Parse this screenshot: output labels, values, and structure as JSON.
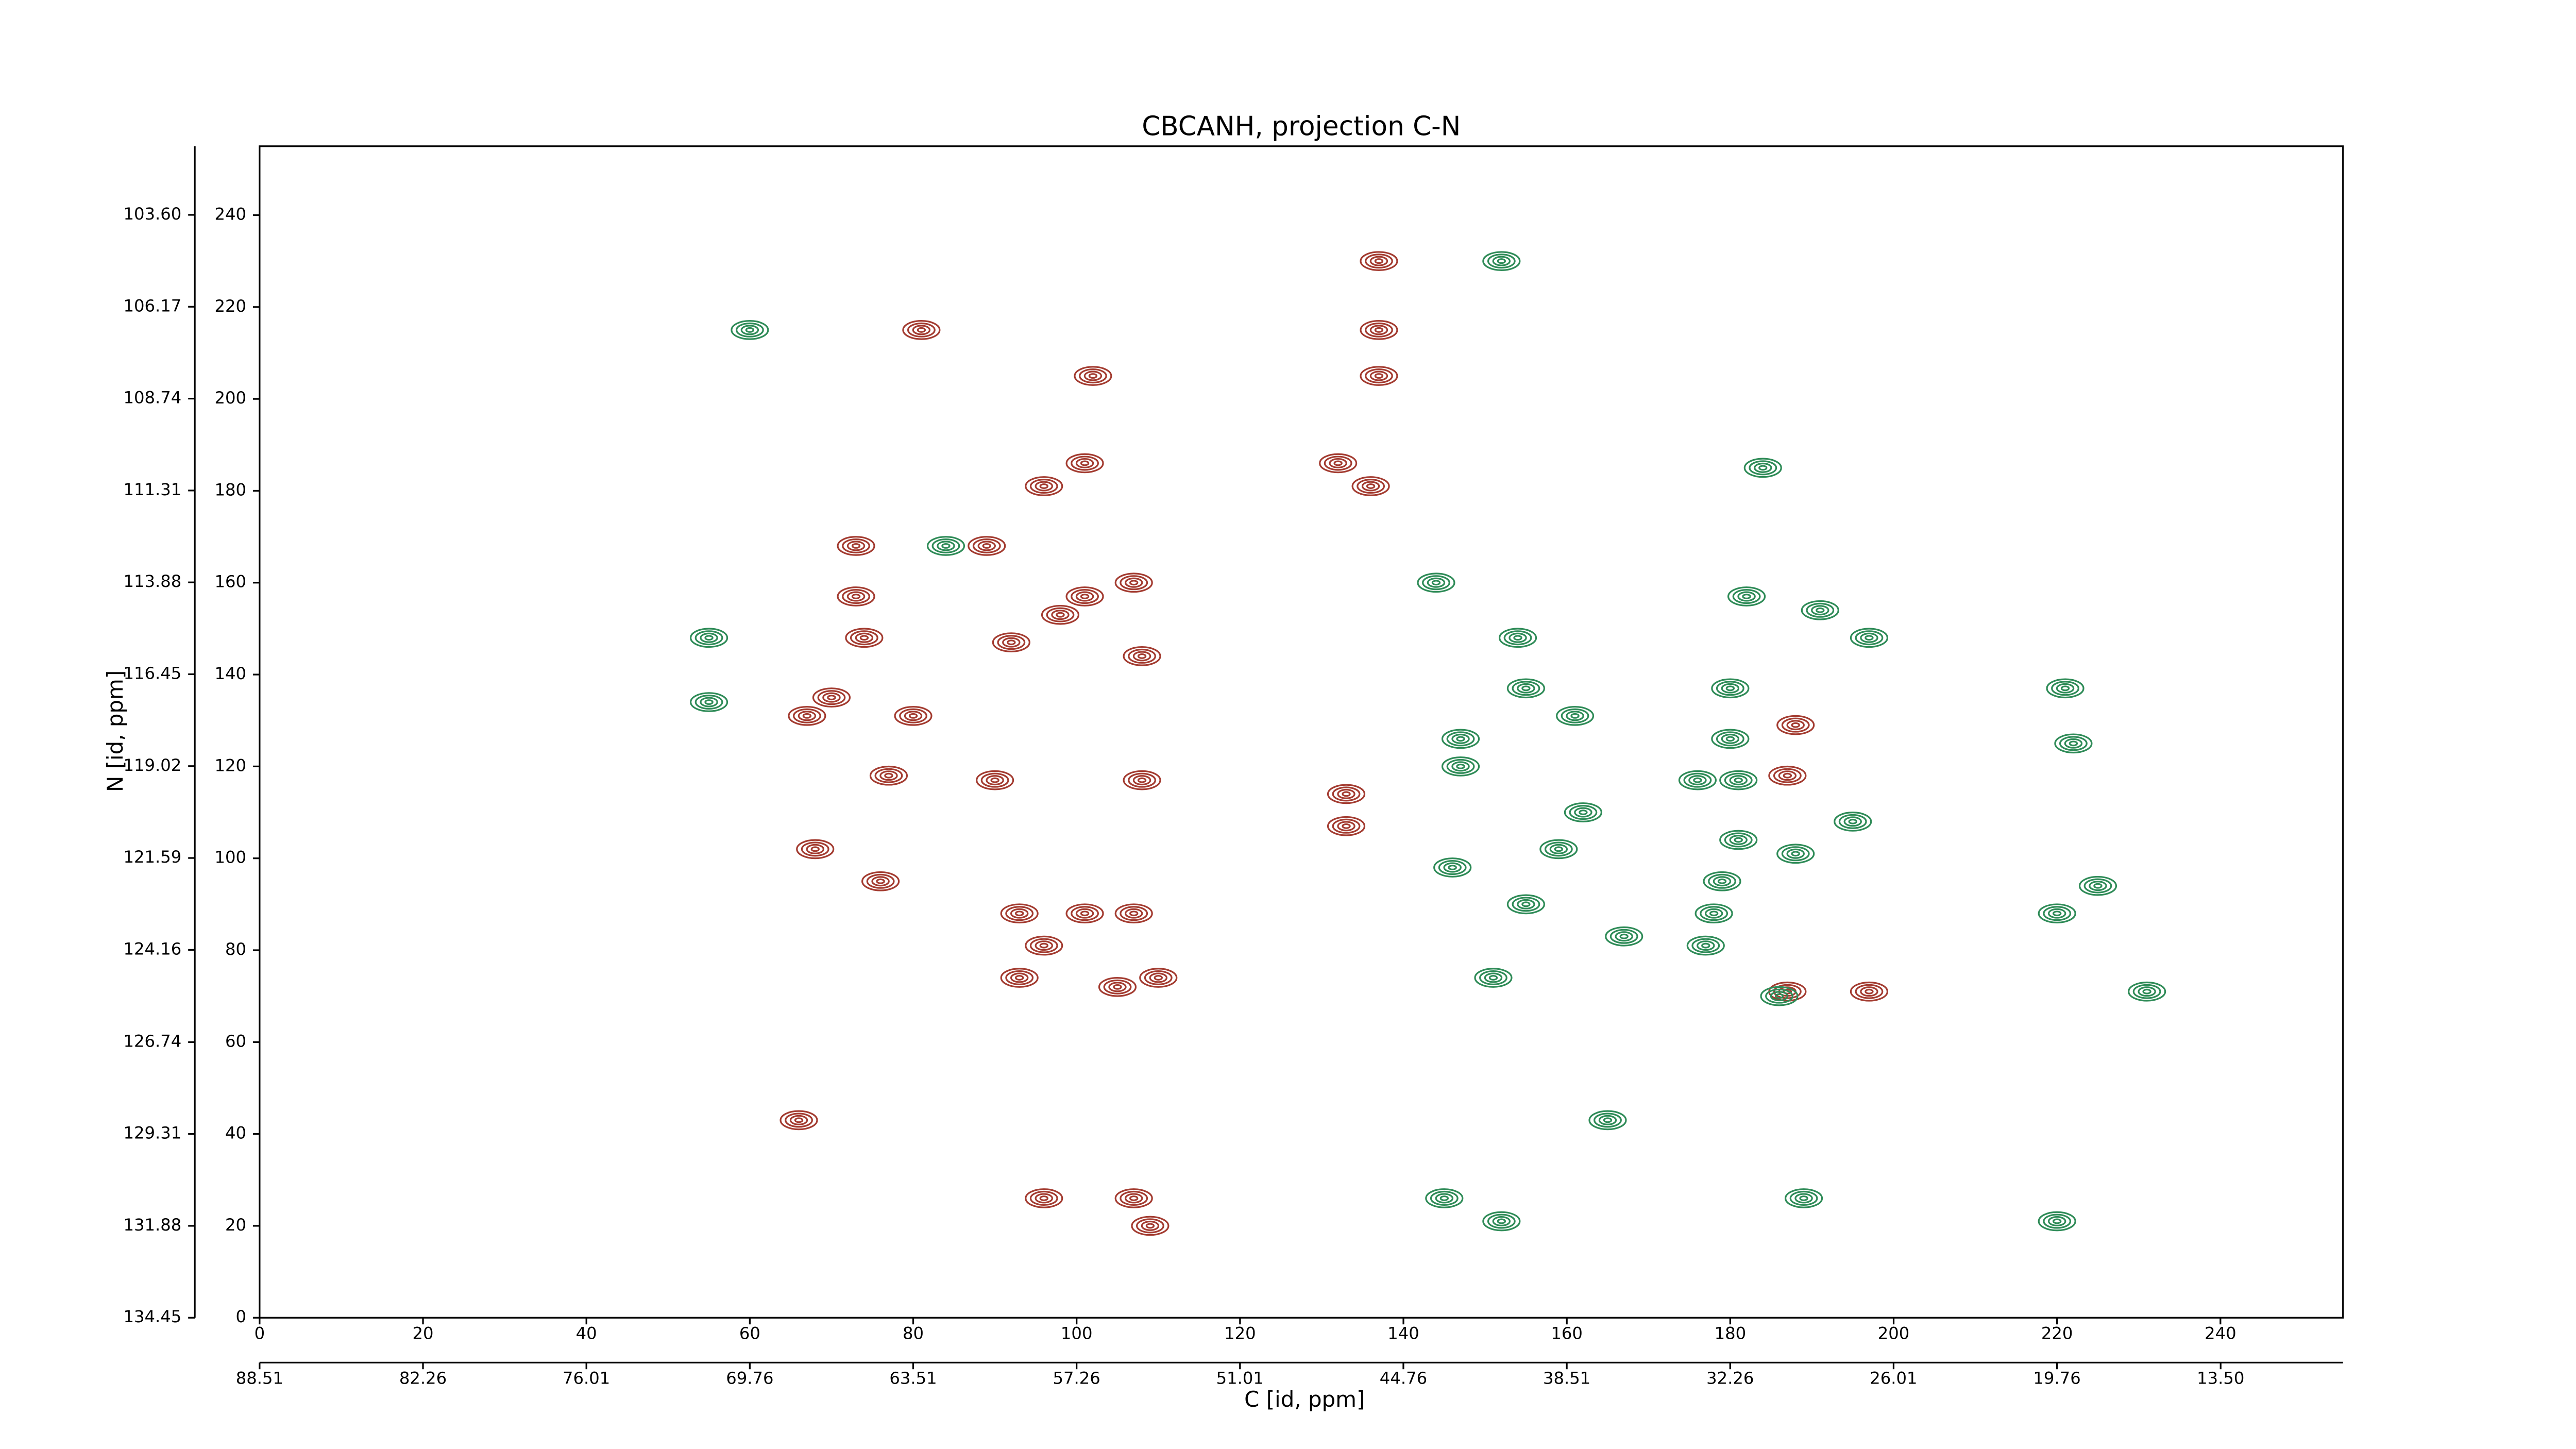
{
  "chart_data": {
    "type": "contour",
    "title": "CBCANH, projection C-N",
    "xlabel": "C [id, ppm]",
    "ylabel": "N [id, ppm]",
    "xlim": [
      0,
      255
    ],
    "xticks": [
      0,
      20,
      40,
      60,
      80,
      100,
      120,
      140,
      160,
      180,
      200,
      220,
      240
    ],
    "ylim": [
      0,
      255
    ],
    "yticks": [
      0,
      20,
      40,
      60,
      80,
      100,
      120,
      140,
      160,
      180,
      200,
      220,
      240
    ],
    "x2lim": [
      88.51,
      8.82
    ],
    "x2ticks": [
      88.51,
      82.26,
      76.01,
      69.76,
      63.51,
      57.26,
      51.01,
      44.76,
      38.51,
      32.26,
      26.01,
      19.76,
      {
        "value": 13.5,
        "label": "13.50"
      }
    ],
    "y2lim": [
      134.45,
      101.68
    ],
    "y2ticks": [
      {
        "value": 103.6,
        "label": "103.60"
      },
      106.17,
      108.74,
      111.31,
      113.88,
      116.45,
      119.02,
      121.59,
      124.16,
      126.74,
      129.31,
      131.88,
      134.45
    ],
    "series": [
      {
        "color": "#a33b30",
        "x": [
          137,
          137,
          137,
          81,
          102,
          132,
          136,
          96,
          101,
          89,
          73,
          101,
          107,
          73,
          74,
          92,
          98,
          108,
          70,
          80,
          67,
          77,
          90,
          108,
          133,
          133,
          68,
          76,
          93,
          101,
          107,
          96,
          93,
          110,
          105,
          96,
          107,
          109,
          66,
          187,
          188,
          187,
          197
        ],
        "y": [
          230,
          215,
          205,
          215,
          205,
          186,
          181,
          181,
          186,
          168,
          168,
          157,
          160,
          157,
          148,
          147,
          153,
          144,
          135,
          131,
          131,
          118,
          117,
          117,
          114,
          107,
          102,
          95,
          88,
          88,
          88,
          81,
          74,
          74,
          72,
          26,
          26,
          20,
          43,
          71,
          129,
          118,
          71
        ]
      },
      {
        "color": "#2e8b57",
        "x": [
          60,
          152,
          144,
          55,
          55,
          84,
          147,
          147,
          154,
          155,
          161,
          162,
          159,
          146,
          155,
          167,
          151,
          182,
          180,
          180,
          181,
          176,
          181,
          188,
          179,
          178,
          177,
          186,
          191,
          197,
          195,
          222,
          225,
          220,
          231,
          221,
          165,
          145,
          152,
          189,
          220,
          184
        ],
        "y": [
          215,
          230,
          160,
          148,
          134,
          168,
          126,
          120,
          148,
          137,
          131,
          110,
          102,
          98,
          90,
          83,
          74,
          157,
          137,
          126,
          117,
          117,
          104,
          101,
          95,
          88,
          81,
          70,
          154,
          148,
          108,
          125,
          94,
          88,
          71,
          137,
          43,
          26,
          21,
          26,
          21,
          185
        ]
      }
    ]
  }
}
